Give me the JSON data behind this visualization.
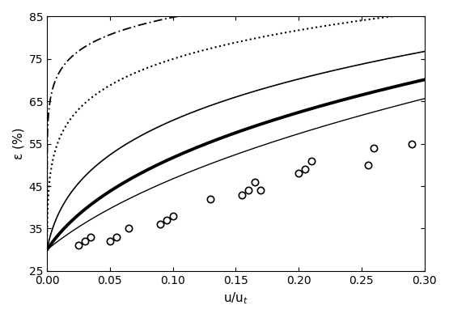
{
  "xlabel": "u/u$_t$",
  "ylabel": "ε (%)",
  "xlim": [
    0,
    0.3
  ],
  "ylim": [
    25,
    85
  ],
  "xticks": [
    0,
    0.05,
    0.1,
    0.15,
    0.2,
    0.25,
    0.3
  ],
  "yticks": [
    25,
    35,
    45,
    55,
    65,
    75,
    85
  ],
  "exp_data_x": [
    0.025,
    0.03,
    0.035,
    0.05,
    0.055,
    0.065,
    0.09,
    0.095,
    0.1,
    0.13,
    0.155,
    0.16,
    0.165,
    0.17,
    0.2,
    0.205,
    0.21,
    0.255,
    0.26,
    0.29
  ],
  "exp_data_y": [
    31,
    32,
    33,
    32,
    33,
    35,
    36,
    37,
    38,
    42,
    43,
    44,
    46,
    44,
    48,
    49,
    51,
    50,
    54,
    55
  ],
  "background_color": "#ffffff",
  "line_color": "#000000",
  "n_dashdot": 14,
  "n_dotted": 8,
  "n_thin_upper": 4.5,
  "n_thick": 3.2,
  "n_thin_lower": 2.5,
  "eps0": 0.3
}
